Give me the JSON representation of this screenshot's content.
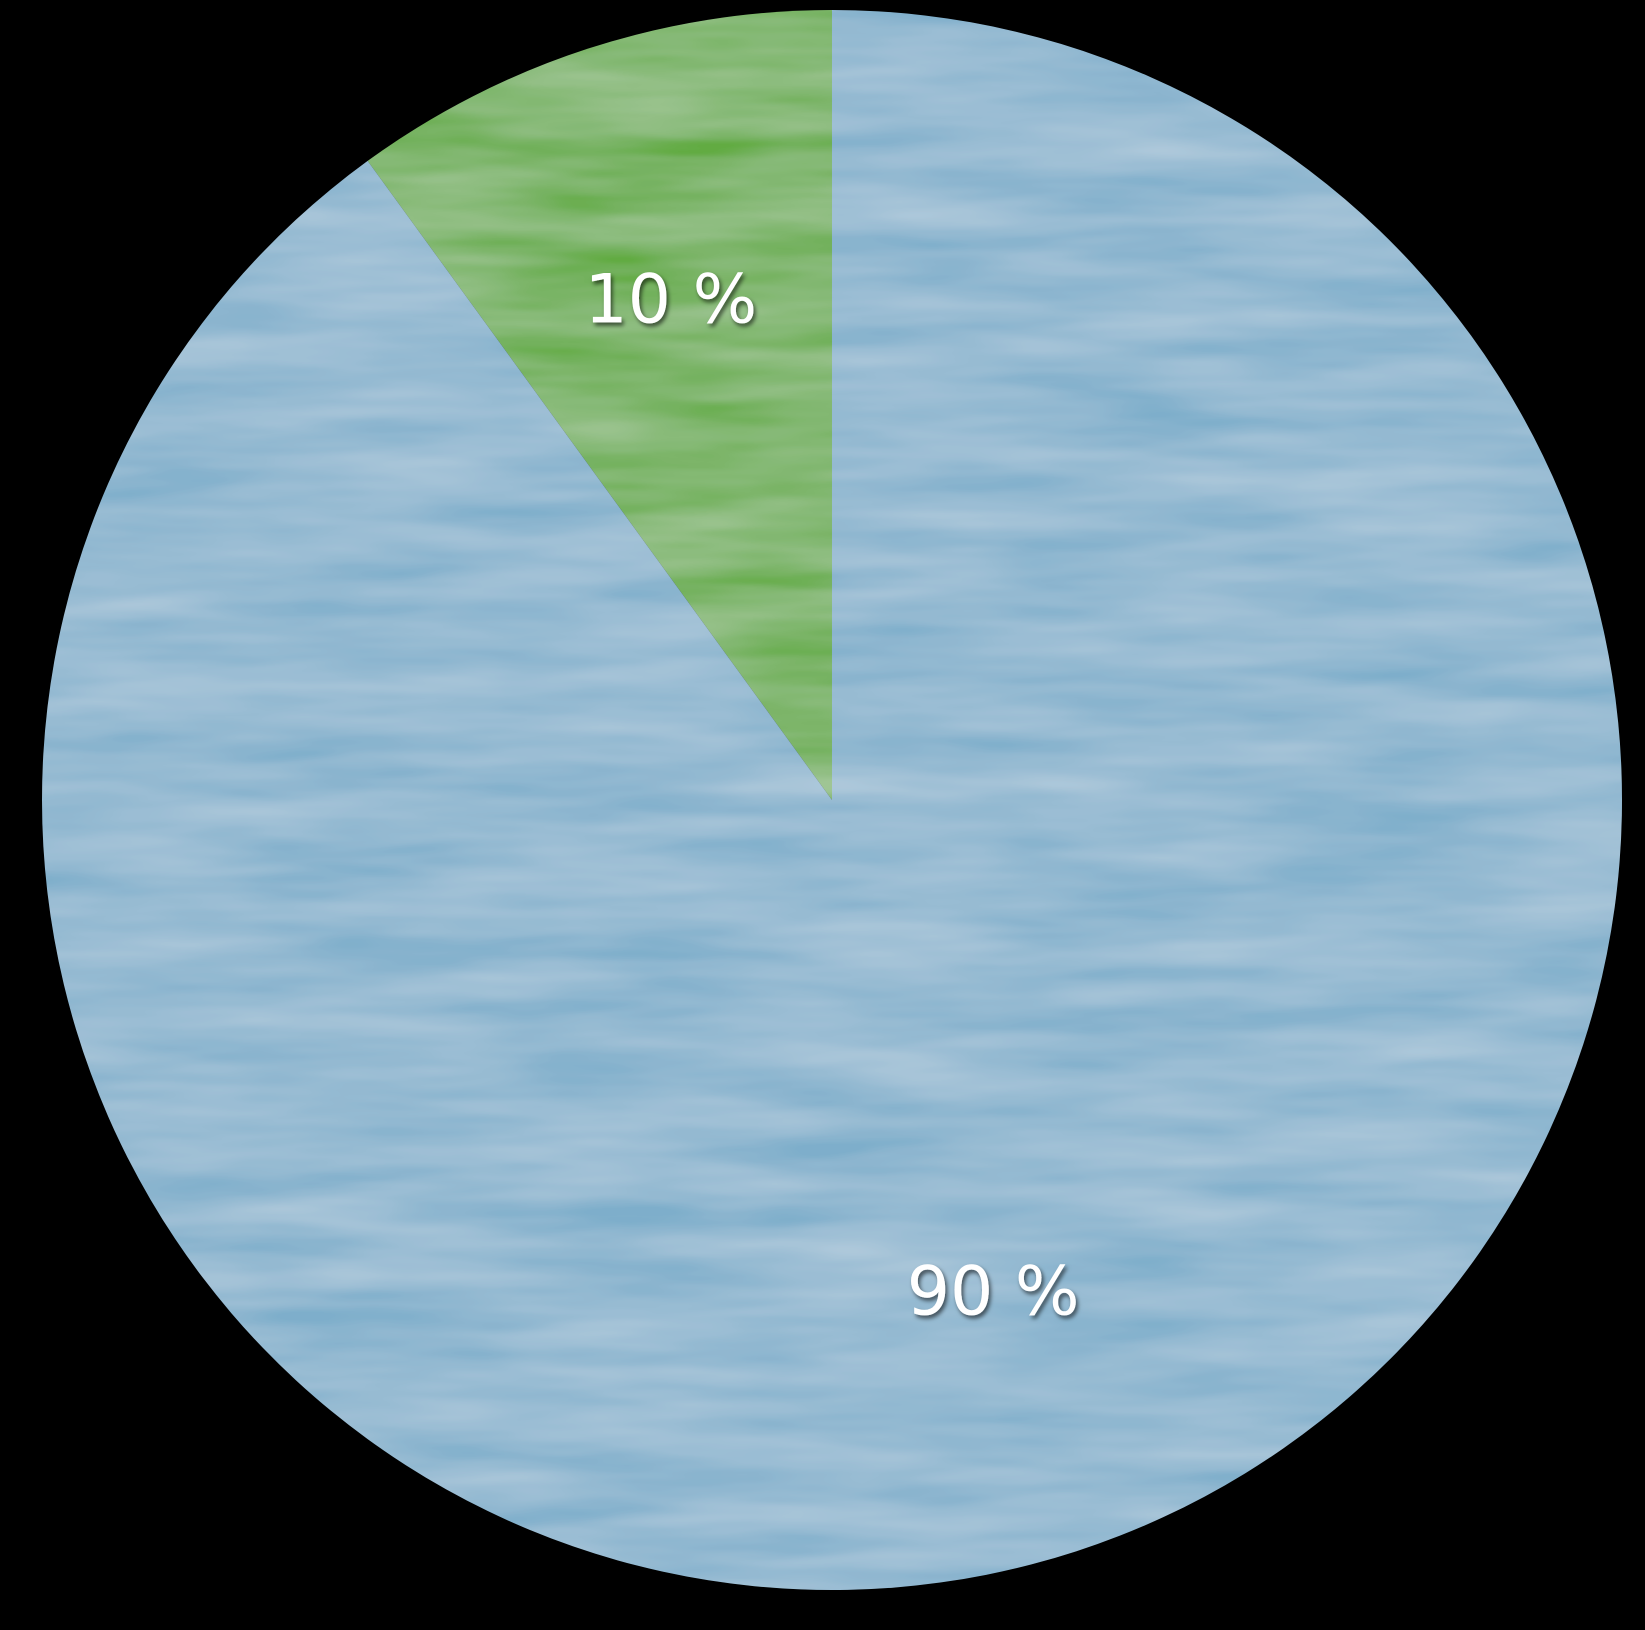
{
  "chart_data": {
    "type": "pie",
    "values": [
      10,
      90
    ],
    "value_labels": [
      "10 %",
      "90 %"
    ],
    "colors": [
      "#62ab42",
      "#7eaecb"
    ],
    "start_angle": 0,
    "direction": "counterclockwise"
  }
}
